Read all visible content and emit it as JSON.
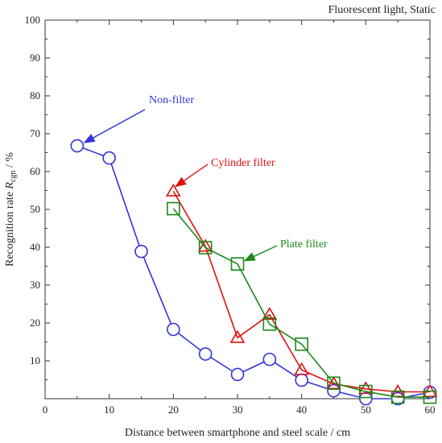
{
  "chart_data": {
    "type": "line",
    "annotation_title": "Fluorescent light, Static",
    "xlabel": "Distance between smartphone and steel scale / cm",
    "ylabel_main": "Recognition rate ",
    "ylabel_symbol": "R",
    "ylabel_subscript": "cgn",
    "ylabel_unit": " / %",
    "xlim": [
      0,
      60
    ],
    "ylim": [
      0,
      100
    ],
    "xticks": [
      0,
      10,
      20,
      30,
      40,
      50,
      60
    ],
    "yticks": [
      0,
      10,
      20,
      30,
      40,
      50,
      60,
      70,
      80,
      90,
      100
    ],
    "ytick_labels": [
      "",
      "10",
      "20",
      "30",
      "40",
      "50",
      "60",
      "70",
      "80",
      "90",
      "100"
    ],
    "grid": false,
    "legend": "none",
    "series": [
      {
        "name": "Non-filter",
        "color": "#3333dd",
        "marker": "circle",
        "x": [
          5,
          10,
          15,
          20,
          25,
          30,
          35,
          40,
          45,
          50,
          55,
          60
        ],
        "y": [
          66.8,
          63.6,
          38.9,
          18.3,
          11.8,
          6.4,
          10.4,
          4.9,
          2.1,
          0.0,
          0.0,
          1.7
        ],
        "annotation": {
          "text": "Non-filter",
          "point_index": 0
        }
      },
      {
        "name": "Cylinder filter",
        "color": "#dd1111",
        "marker": "triangle",
        "x": [
          20,
          25,
          30,
          35,
          40,
          45,
          50,
          55,
          60
        ],
        "y": [
          54.8,
          40.2,
          16.1,
          22.2,
          7.6,
          3.9,
          2.6,
          1.8,
          1.8
        ],
        "annotation": {
          "text": "Cylinder filter",
          "point_index": 0
        }
      },
      {
        "name": "Plate filter",
        "color": "#1a8a1a",
        "marker": "square",
        "x": [
          20,
          25,
          30,
          35,
          40,
          45,
          50,
          55,
          60
        ],
        "y": [
          50.2,
          39.9,
          35.6,
          19.7,
          14.4,
          4.1,
          1.9,
          0.4,
          0.4
        ],
        "annotation": {
          "text": "Plate filter",
          "point_index": 2
        }
      }
    ]
  }
}
